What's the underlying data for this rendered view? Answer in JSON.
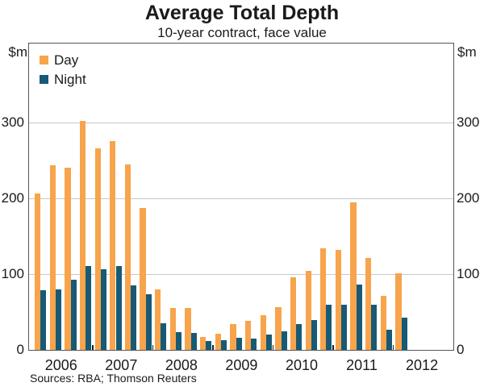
{
  "title": "Average Total Depth",
  "subtitle": "10-year contract, face value",
  "footer": "Sources: RBA; Thomson Reuters",
  "axis_units": {
    "left": "$m",
    "right": "$m"
  },
  "chart_data": {
    "type": "bar",
    "title": "Average Total Depth",
    "subtitle": "10-year contract, face value",
    "unit": "$m",
    "ylim": [
      0,
      400
    ],
    "yticks": [
      0,
      100,
      200,
      300
    ],
    "grid": true,
    "legend_position": "top-left",
    "x_year_labels": [
      "2006",
      "2007",
      "2008",
      "2009",
      "2010",
      "2011",
      "2012"
    ],
    "categories": [
      "2006 Q1",
      "2006 Q2",
      "2006 Q3",
      "2006 Q4",
      "2007 Q1",
      "2007 Q2",
      "2007 Q3",
      "2007 Q4",
      "2008 Q1",
      "2008 Q2",
      "2008 Q3",
      "2008 Q4",
      "2009 Q1",
      "2009 Q2",
      "2009 Q3",
      "2009 Q4",
      "2010 Q1",
      "2010 Q2",
      "2010 Q3",
      "2010 Q4",
      "2011 Q1",
      "2011 Q2",
      "2011 Q3",
      "2011 Q4",
      "2012 Q1"
    ],
    "series": [
      {
        "name": "Day",
        "color": "#F7A44C",
        "values": [
          206,
          243,
          240,
          302,
          266,
          275,
          244,
          187,
          80,
          55,
          55,
          17,
          21,
          34,
          38,
          46,
          56,
          96,
          104,
          134,
          132,
          195,
          121,
          71,
          101
        ]
      },
      {
        "name": "Night",
        "color": "#175A75",
        "values": [
          79,
          80,
          92,
          111,
          106,
          111,
          85,
          73,
          35,
          23,
          22,
          12,
          13,
          16,
          15,
          20,
          24,
          34,
          39,
          60,
          60,
          86,
          59,
          27,
          42
        ]
      }
    ],
    "source": "Sources: RBA; Thomson Reuters"
  }
}
